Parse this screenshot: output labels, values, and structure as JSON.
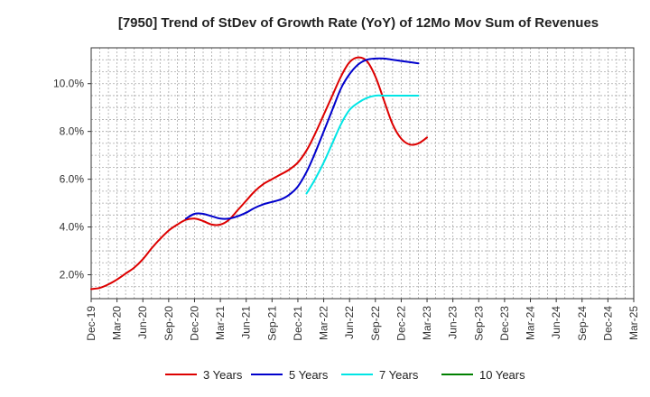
{
  "chart_data": {
    "type": "line",
    "title": "[7950]  Trend of StDev of Growth Rate (YoY) of 12Mo Mov Sum of Revenues",
    "xlabel": "",
    "ylabel": "",
    "ylim": [
      1.0,
      11.5
    ],
    "grid": true,
    "legend_position": "bottom",
    "x_ticks": [
      "Dec-19",
      "Mar-20",
      "Jun-20",
      "Sep-20",
      "Dec-20",
      "Mar-21",
      "Jun-21",
      "Sep-21",
      "Dec-21",
      "Mar-22",
      "Jun-22",
      "Sep-22",
      "Dec-22",
      "Mar-23",
      "Jun-23",
      "Sep-23",
      "Dec-23",
      "Mar-24",
      "Jun-24",
      "Sep-24",
      "Dec-24",
      "Mar-25"
    ],
    "y_ticks": [
      {
        "value": 2,
        "label": "2.0%"
      },
      {
        "value": 4,
        "label": "4.0%"
      },
      {
        "value": 6,
        "label": "6.0%"
      },
      {
        "value": 8,
        "label": "8.0%"
      },
      {
        "value": 10,
        "label": "10.0%"
      }
    ],
    "series": [
      {
        "name": "3 Years",
        "color": "#dd0000",
        "values": [
          1.4,
          1.45,
          1.6,
          1.8,
          2.05,
          2.3,
          2.65,
          3.1,
          3.5,
          3.85,
          4.1,
          4.3,
          4.35,
          4.25,
          4.1,
          4.1,
          4.3,
          4.7,
          5.1,
          5.5,
          5.8,
          6.0,
          6.2,
          6.4,
          6.7,
          7.2,
          7.9,
          8.7,
          9.5,
          10.3,
          10.9,
          11.1,
          10.95,
          10.3,
          9.3,
          8.3,
          7.7,
          7.45,
          7.5,
          7.75
        ]
      },
      {
        "name": "5 Years",
        "color": "#0000cc",
        "values": [
          null,
          null,
          null,
          null,
          null,
          null,
          null,
          null,
          null,
          null,
          null,
          4.35,
          4.55,
          4.55,
          4.45,
          4.35,
          4.35,
          4.45,
          4.6,
          4.8,
          4.95,
          5.05,
          5.15,
          5.35,
          5.7,
          6.3,
          7.1,
          8.0,
          8.9,
          9.8,
          10.4,
          10.8,
          11.0,
          11.05,
          11.05,
          11.0,
          10.95,
          10.9,
          10.85,
          null
        ]
      },
      {
        "name": "7 Years",
        "color": "#00e5e5",
        "values": [
          null,
          null,
          null,
          null,
          null,
          null,
          null,
          null,
          null,
          null,
          null,
          null,
          null,
          null,
          null,
          null,
          null,
          null,
          null,
          null,
          null,
          null,
          null,
          null,
          null,
          5.4,
          6.0,
          6.7,
          7.5,
          8.3,
          8.9,
          9.2,
          9.4,
          9.5,
          9.5,
          9.5,
          9.5,
          9.5,
          9.5,
          null
        ]
      },
      {
        "name": "10 Years",
        "color": "#008000",
        "values": []
      }
    ]
  }
}
